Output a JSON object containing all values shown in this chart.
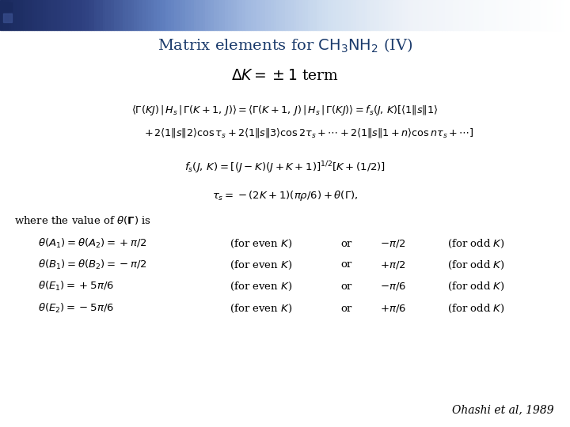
{
  "title": "Matrix elements for $\\mathrm{CH_3NH_2}$ (IV)",
  "title_color": "#1a3a6b",
  "bg_color": "#ffffff",
  "subtitle": "$\\Delta\\mathit{K} = \\pm 1$ term",
  "eq1": "$\\langle \\Gamma(KJ)\\,|\\,H_s\\,|\\,\\Gamma(K+1,\\,J)\\rangle = \\langle \\Gamma(K+1,\\,J)\\,|\\,H_s\\,|\\,\\Gamma(KJ)\\rangle = f_s(J,\\,K)[\\langle 1\\|s\\|1\\rangle$",
  "eq2": "$+\\,2\\langle 1\\|s\\|2\\rangle\\cos\\tau_s + 2\\langle 1\\|s\\|3\\rangle\\cos 2\\tau_s + \\cdots + 2\\langle 1\\|s\\|1+n\\rangle\\cos n\\tau_s + \\cdots]$",
  "eq3": "$f_s(J,\\,K) = [(J-K)(J+K+1)]^{1/2}[K+(1/2)]$",
  "eq4": "$\\tau_s = -(2K+1)(\\pi\\rho/6) + \\theta(\\Gamma),$",
  "where_text": "where the value of $\\theta(\\mathbf{\\Gamma})$ is",
  "rows": [
    {
      "left": "$\\theta(A_1) = \\theta(A_2) = +\\pi/2$",
      "mid1": "(for even $K$)",
      "or": "or",
      "right": "$-\\pi/2$",
      "mid2": "(for odd $K$)"
    },
    {
      "left": "$\\theta(B_1) = \\theta(B_2) = -\\pi/2$",
      "mid1": "(for even $K$)",
      "or": "or",
      "right": "$+\\pi/2$",
      "mid2": "(for odd $K$)"
    },
    {
      "left": "$\\theta(E_1) = +5\\pi/6$",
      "mid1": "(for even $K$)",
      "or": "or",
      "right": "$-\\pi/6$",
      "mid2": "(for odd $K$)"
    },
    {
      "left": "$\\theta(E_2) = -5\\pi/6$",
      "mid1": "(for even $K$)",
      "or": "or",
      "right": "$+\\pi/6$",
      "mid2": "(for odd $K$)"
    }
  ],
  "citation": "Ohashi et al, 1989",
  "gradient_colors": [
    "#1a2a5e",
    "#2e4080",
    "#6080c0",
    "#a0b8e0",
    "#d0dff0",
    "#eef2f8",
    "#f8fafc",
    "#ffffff"
  ],
  "square_dark": "#1a2a5e",
  "square_mid": "#3a5090"
}
